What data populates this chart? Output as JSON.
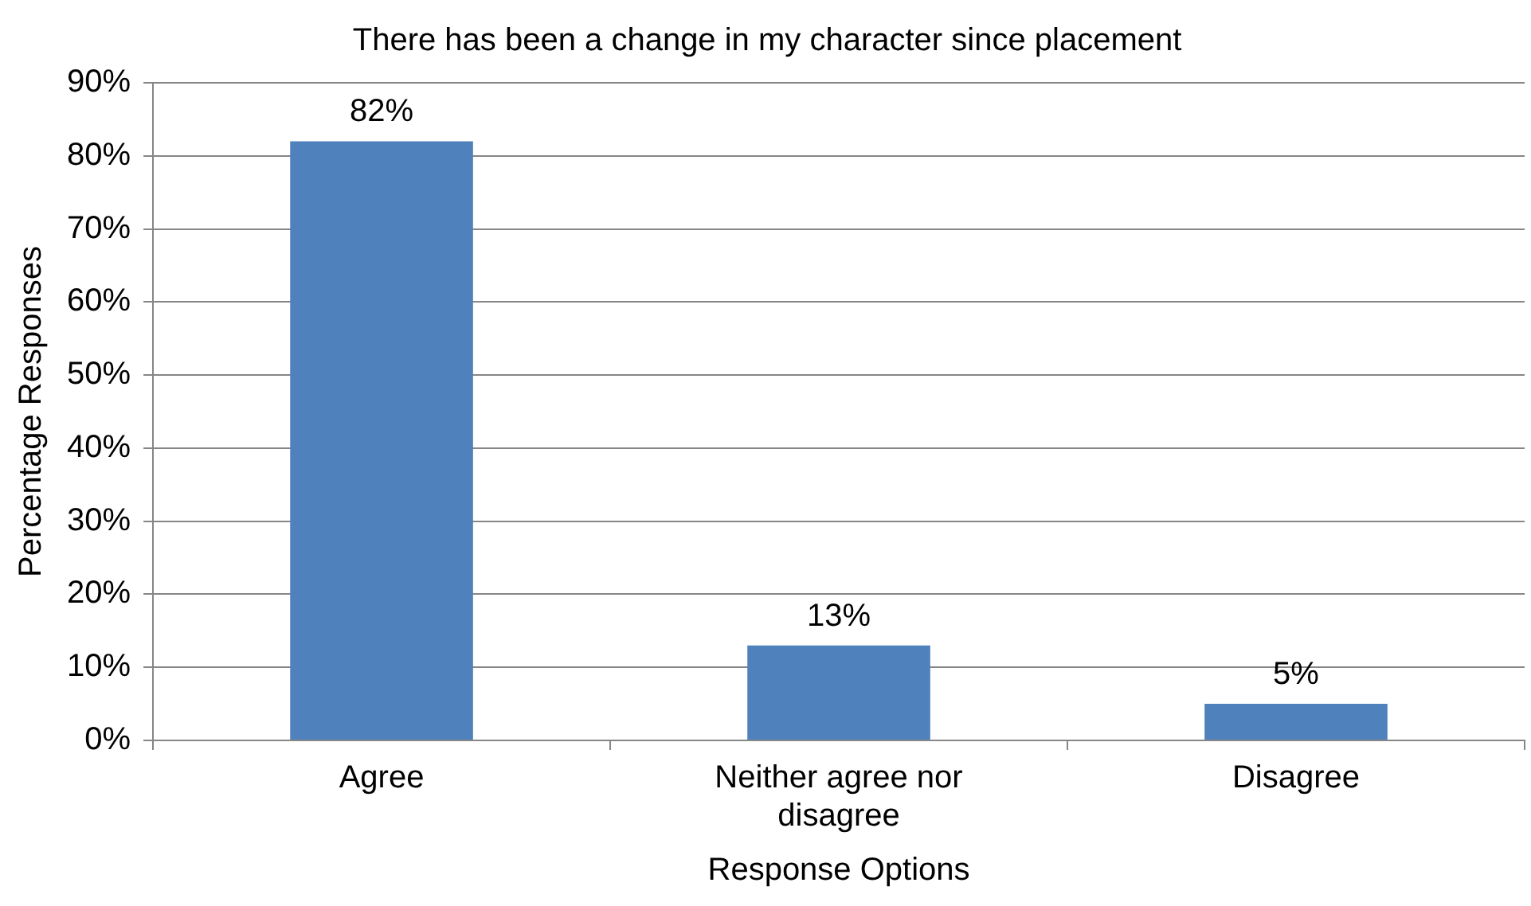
{
  "chart_data": {
    "type": "bar",
    "title": "There has been a change in my character since placement",
    "xlabel": "Response Options",
    "ylabel": "Percentage Responses",
    "categories": [
      "Agree",
      "Neither agree nor disagree",
      "Disagree"
    ],
    "values": [
      82,
      13,
      5
    ],
    "value_labels": [
      "82%",
      "13%",
      "5%"
    ],
    "color": "#4f81bd",
    "ylim": [
      0,
      90
    ],
    "yticks": [
      {
        "value": 0,
        "label": "0%"
      },
      {
        "value": 10,
        "label": "10%"
      },
      {
        "value": 20,
        "label": "20%"
      },
      {
        "value": 30,
        "label": "30%"
      },
      {
        "value": 40,
        "label": "40%"
      },
      {
        "value": 50,
        "label": "50%"
      },
      {
        "value": 60,
        "label": "60%"
      },
      {
        "value": 70,
        "label": "70%"
      },
      {
        "value": 80,
        "label": "80%"
      },
      {
        "value": 90,
        "label": "90%"
      }
    ],
    "grid": "y",
    "legend": false
  }
}
